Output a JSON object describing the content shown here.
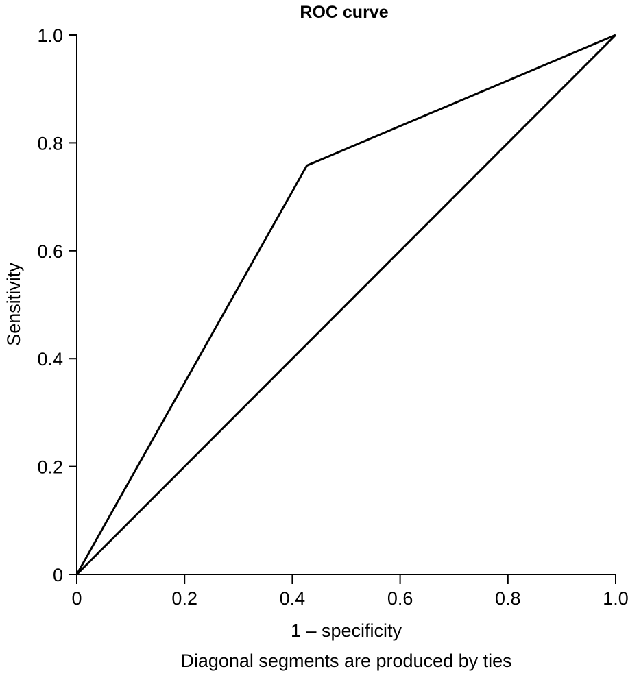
{
  "chart_data": {
    "type": "line",
    "title": "ROC curve",
    "xlabel": "1 – specificity",
    "ylabel": "Sensitivity",
    "footnote": "Diagonal segments are produced by ties",
    "xlim": [
      0,
      1
    ],
    "ylim": [
      0,
      1
    ],
    "x_ticks": [
      0,
      0.2,
      0.4,
      0.6,
      0.8,
      1.0
    ],
    "x_tick_labels": [
      "0",
      "0.2",
      "0.4",
      "0.6",
      "0.8",
      "1.0"
    ],
    "y_ticks": [
      0,
      0.2,
      0.4,
      0.6,
      0.8,
      1.0
    ],
    "y_tick_labels": [
      "0",
      "0.2",
      "0.4",
      "0.6",
      "0.8",
      "1.0"
    ],
    "grid": false,
    "legend": "none",
    "line_color": "#000000",
    "series": [
      {
        "x": [
          0,
          0.427,
          1.0
        ],
        "y": [
          0,
          0.758,
          1.0
        ]
      },
      {
        "x": [
          0,
          1.0
        ],
        "y": [
          0,
          1.0
        ]
      }
    ]
  }
}
